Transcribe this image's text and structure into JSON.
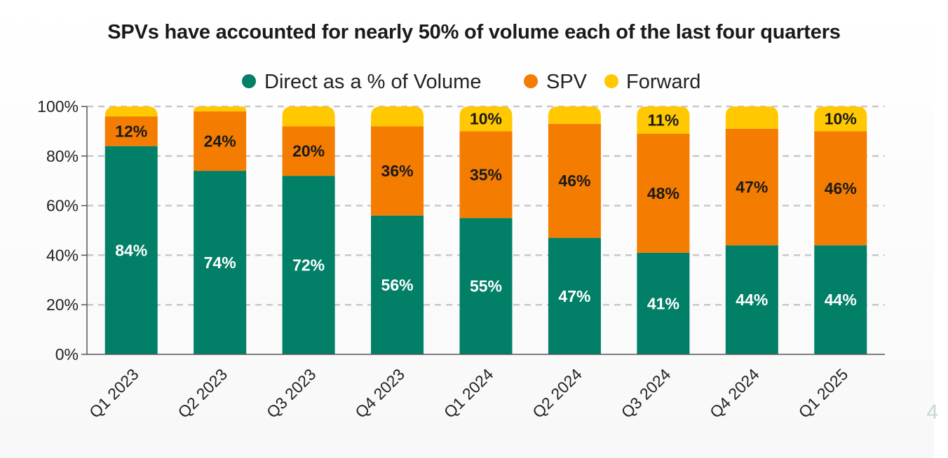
{
  "colors": {
    "direct": "#017f67",
    "spv": "#f47c00",
    "forward": "#ffc800",
    "grid": "#c8c8c8",
    "axis": "#555555"
  },
  "chart_data": {
    "type": "bar",
    "stacked": true,
    "title": "SPVs have accounted for nearly 50% of volume each of the last four quarters",
    "xlabel": "",
    "ylabel": "",
    "ylim": [
      0,
      100
    ],
    "yticks": [
      "0%",
      "20%",
      "40%",
      "60%",
      "80%",
      "100%"
    ],
    "grid": true,
    "legend_position": "top",
    "categories": [
      "Q1 2023",
      "Q2 2023",
      "Q3 2023",
      "Q4 2023",
      "Q1 2024",
      "Q2 2024",
      "Q3 2024",
      "Q4 2024",
      "Q1 2025"
    ],
    "series": [
      {
        "name": "Direct as a % of Volume",
        "values": [
          84,
          74,
          72,
          56,
          55,
          47,
          41,
          44,
          44
        ],
        "labels": [
          "84%",
          "74%",
          "72%",
          "56%",
          "55%",
          "47%",
          "41%",
          "44%",
          "44%"
        ]
      },
      {
        "name": "SPV",
        "values": [
          12,
          24,
          20,
          36,
          35,
          46,
          48,
          47,
          46
        ],
        "labels": [
          "12%",
          "24%",
          "20%",
          "36%",
          "35%",
          "46%",
          "48%",
          "47%",
          "46%"
        ]
      },
      {
        "name": "Forward",
        "values": [
          4,
          2,
          8,
          8,
          10,
          7,
          11,
          9,
          10
        ],
        "labels": [
          "",
          "",
          "",
          "",
          "10%",
          "",
          "11%",
          "",
          "10%"
        ]
      }
    ]
  },
  "page_number": "4"
}
